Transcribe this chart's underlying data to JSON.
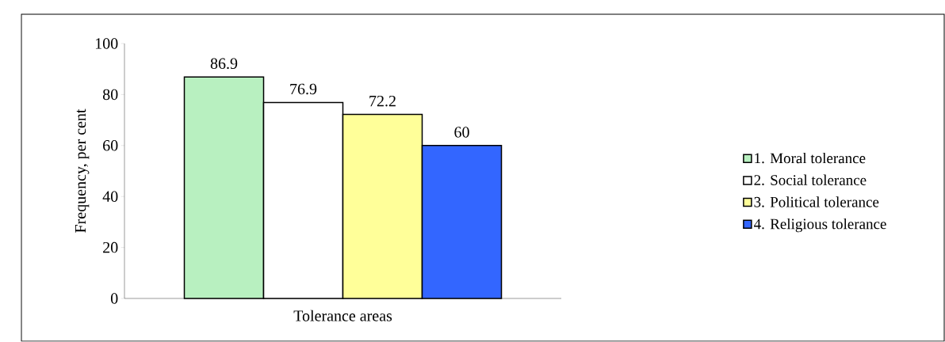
{
  "chart_data": {
    "type": "bar",
    "xlabel": "Tolerance areas",
    "ylabel": "Frequency, per cent",
    "categories": [
      null
    ],
    "series": [
      {
        "name": "1. Moral tolerance",
        "color": "#b8f0c0",
        "values": [
          86.9
        ]
      },
      {
        "name": "2. Social tolerance",
        "color": "#ffffff",
        "values": [
          76.9
        ]
      },
      {
        "name": "3. Political tolerance",
        "color": "#ffff99",
        "values": [
          72.2
        ]
      },
      {
        "name": "4. Religious tolerance",
        "color": "#3366ff",
        "values": [
          60
        ]
      }
    ],
    "ylim": [
      0,
      100
    ],
    "yticks": [
      0,
      20,
      40,
      60,
      80,
      100
    ],
    "data_labels": true,
    "legend": "right",
    "grid": false
  }
}
